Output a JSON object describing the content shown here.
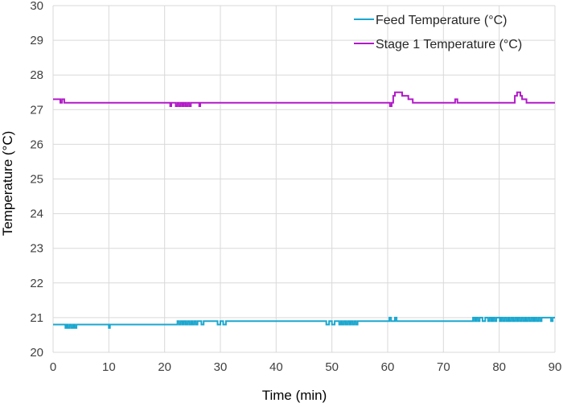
{
  "chart_data": {
    "type": "line",
    "xlabel": "Time (min)",
    "ylabel": "Temperature (°C)",
    "xlim": [
      0,
      90
    ],
    "ylim": [
      20,
      30
    ],
    "xticks": [
      0,
      10,
      20,
      30,
      40,
      50,
      60,
      70,
      80,
      90
    ],
    "yticks": [
      20,
      21,
      22,
      23,
      24,
      25,
      26,
      27,
      28,
      29,
      30
    ],
    "grid": "vertical and horizontal",
    "legend_position": "top-right",
    "series": [
      {
        "name": "Feed Temperature (°C)",
        "color": "#1aa7cf",
        "x": [
          0,
          2.0,
          2.2,
          2.5,
          2.7,
          3.0,
          3.3,
          3.6,
          3.9,
          4.2,
          4.5,
          9.8,
          10.0,
          10.2,
          20.5,
          22.0,
          22.3,
          22.6,
          22.9,
          23.2,
          23.5,
          23.8,
          24.1,
          24.4,
          24.7,
          25.0,
          25.3,
          25.6,
          25.9,
          26.2,
          26.6,
          27.0,
          27.3,
          29.0,
          29.5,
          30.0,
          30.5,
          31.0,
          40.0,
          48.5,
          49.0,
          49.5,
          50.0,
          50.5,
          51.0,
          51.3,
          51.6,
          51.9,
          52.2,
          52.5,
          52.8,
          53.1,
          53.4,
          53.7,
          54.0,
          54.3,
          54.6,
          55.0,
          60.0,
          60.3,
          60.6,
          61.0,
          61.3,
          61.6,
          62.0,
          70.0,
          75.0,
          75.3,
          75.6,
          75.9,
          76.2,
          76.5,
          77.0,
          77.5,
          78.0,
          78.3,
          78.6,
          78.9,
          79.2,
          79.5,
          79.8,
          80.1,
          80.4,
          80.7,
          81.0,
          81.3,
          81.6,
          81.9,
          82.2,
          82.5,
          82.8,
          83.1,
          83.4,
          83.7,
          84.0,
          84.3,
          84.6,
          84.9,
          85.2,
          85.5,
          85.8,
          86.1,
          86.4,
          86.7,
          87.0,
          87.3,
          87.6,
          88.0,
          88.5,
          89.0,
          89.3,
          89.6,
          90.0
        ],
        "y": [
          20.8,
          20.8,
          20.7,
          20.8,
          20.7,
          20.8,
          20.7,
          20.8,
          20.7,
          20.8,
          20.8,
          20.8,
          20.7,
          20.8,
          20.8,
          20.8,
          20.9,
          20.8,
          20.9,
          20.8,
          20.9,
          20.8,
          20.9,
          20.8,
          20.9,
          20.8,
          20.9,
          20.8,
          20.9,
          20.9,
          20.8,
          20.9,
          20.9,
          20.9,
          20.8,
          20.9,
          20.8,
          20.9,
          20.9,
          20.9,
          20.8,
          20.9,
          20.8,
          20.9,
          20.9,
          20.8,
          20.9,
          20.8,
          20.9,
          20.8,
          20.9,
          20.8,
          20.9,
          20.8,
          20.9,
          20.8,
          20.9,
          20.9,
          20.9,
          21.0,
          20.9,
          20.9,
          21.0,
          20.9,
          20.9,
          20.9,
          20.9,
          21.0,
          20.9,
          21.0,
          20.9,
          21.0,
          20.9,
          21.0,
          20.9,
          21.0,
          20.9,
          21.0,
          20.9,
          21.0,
          21.0,
          20.9,
          21.0,
          20.9,
          21.0,
          20.9,
          21.0,
          20.9,
          21.0,
          20.9,
          21.0,
          20.9,
          21.0,
          20.9,
          21.0,
          20.9,
          21.0,
          20.9,
          21.0,
          20.9,
          21.0,
          20.9,
          21.0,
          20.9,
          21.0,
          20.9,
          21.0,
          21.0,
          21.0,
          21.0,
          20.9,
          21.0,
          21.0
        ]
      },
      {
        "name": "Stage 1 Temperature (°C)",
        "color": "#b31ac9",
        "x": [
          0,
          1.2,
          1.3,
          1.6,
          2.0,
          20.8,
          21.0,
          21.2,
          21.4,
          22.0,
          22.3,
          22.6,
          22.9,
          23.2,
          23.5,
          23.8,
          24.1,
          24.4,
          24.7,
          25.0,
          26.0,
          26.2,
          26.4,
          40.0,
          60.0,
          60.4,
          60.7,
          61.0,
          61.3,
          62.3,
          62.6,
          63.4,
          63.7,
          64.2,
          64.5,
          65.0,
          72.0,
          72.1,
          72.3,
          72.5,
          82.5,
          82.8,
          83.2,
          83.8,
          84.1,
          84.6,
          84.9,
          85.6,
          90.0
        ],
        "y": [
          27.3,
          27.3,
          27.2,
          27.3,
          27.2,
          27.2,
          27.1,
          27.2,
          27.2,
          27.1,
          27.2,
          27.1,
          27.2,
          27.1,
          27.2,
          27.1,
          27.2,
          27.1,
          27.2,
          27.2,
          27.2,
          27.1,
          27.2,
          27.2,
          27.2,
          27.1,
          27.2,
          27.4,
          27.5,
          27.5,
          27.4,
          27.4,
          27.3,
          27.3,
          27.2,
          27.2,
          27.2,
          27.3,
          27.3,
          27.2,
          27.2,
          27.4,
          27.5,
          27.4,
          27.3,
          27.3,
          27.2,
          27.2,
          27.2
        ]
      }
    ]
  }
}
